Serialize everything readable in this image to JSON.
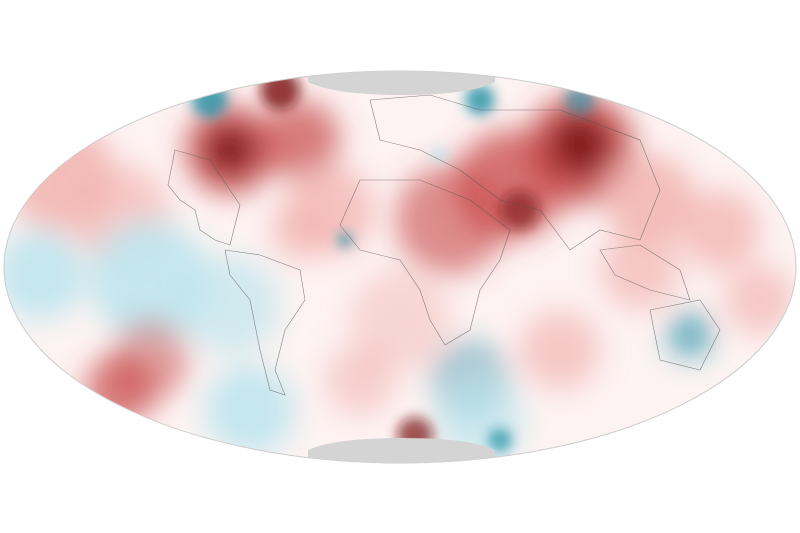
{
  "map": {
    "projection": "hammer-aitoff",
    "colors": {
      "warm_strong": "#7a1010",
      "warm": "#c84a4a",
      "warm_light": "#f2b7b4",
      "cool": "#1e8fa6",
      "cool_light": "#bfe6ee",
      "no_data": "#d4d4d4",
      "background": "#ffffff",
      "borders": "#555555"
    }
  }
}
